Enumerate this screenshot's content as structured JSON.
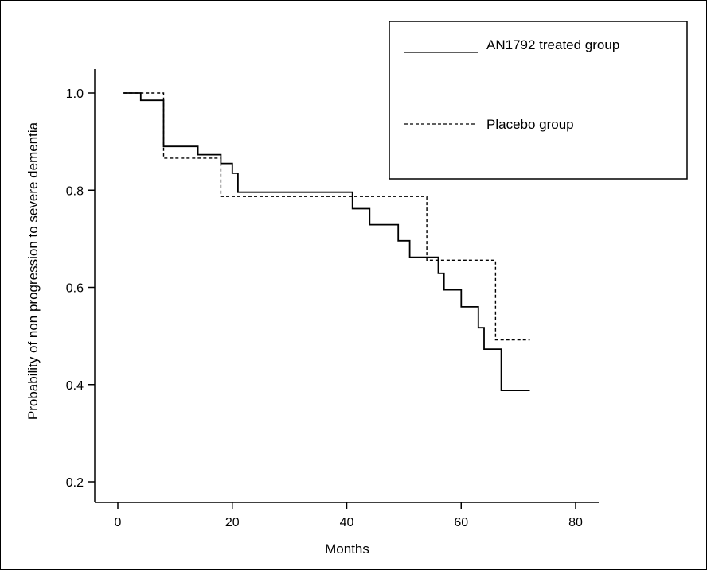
{
  "chart_data": {
    "type": "line",
    "subtype": "step",
    "xlabel": "Months",
    "ylabel": "Probability of non progression to severe dementia",
    "xlim": [
      -5,
      85
    ],
    "ylim": [
      0.15,
      1.06
    ],
    "xticks": [
      0,
      20,
      40,
      60,
      80
    ],
    "yticks": [
      0.2,
      0.4,
      0.6,
      0.8,
      1.0
    ],
    "xtick_labels": [
      "0",
      "20",
      "40",
      "60",
      "80"
    ],
    "ytick_labels": [
      "0.2",
      "0.4",
      "0.6",
      "0.8",
      "1.0"
    ],
    "grid": false,
    "legend_position": "top-right",
    "series": [
      {
        "name": "AN1792 treated group",
        "line_style": "solid",
        "color": "#000000",
        "points": [
          [
            1,
            1.0
          ],
          [
            4,
            1.0
          ],
          [
            4,
            0.985
          ],
          [
            8,
            0.985
          ],
          [
            8,
            0.89
          ],
          [
            14,
            0.89
          ],
          [
            14,
            0.873
          ],
          [
            18,
            0.873
          ],
          [
            18,
            0.855
          ],
          [
            20,
            0.855
          ],
          [
            20,
            0.835
          ],
          [
            21,
            0.835
          ],
          [
            21,
            0.796
          ],
          [
            41,
            0.796
          ],
          [
            41,
            0.762
          ],
          [
            44,
            0.762
          ],
          [
            44,
            0.729
          ],
          [
            49,
            0.729
          ],
          [
            49,
            0.696
          ],
          [
            51,
            0.696
          ],
          [
            51,
            0.662
          ],
          [
            56,
            0.662
          ],
          [
            56,
            0.629
          ],
          [
            57,
            0.629
          ],
          [
            57,
            0.595
          ],
          [
            60,
            0.595
          ],
          [
            60,
            0.56
          ],
          [
            63,
            0.56
          ],
          [
            63,
            0.517
          ],
          [
            64,
            0.517
          ],
          [
            64,
            0.473
          ],
          [
            67,
            0.473
          ],
          [
            67,
            0.388
          ],
          [
            72,
            0.388
          ]
        ]
      },
      {
        "name": "Placebo group",
        "line_style": "dashed",
        "color": "#000000",
        "points": [
          [
            1,
            1.0
          ],
          [
            8,
            1.0
          ],
          [
            8,
            0.866
          ],
          [
            18,
            0.866
          ],
          [
            18,
            0.787
          ],
          [
            54,
            0.787
          ],
          [
            54,
            0.656
          ],
          [
            66,
            0.656
          ],
          [
            66,
            0.492
          ],
          [
            72,
            0.492
          ]
        ]
      }
    ],
    "legend": [
      {
        "label": "AN1792 treated group",
        "line_style": "solid"
      },
      {
        "label": "Placebo group",
        "line_style": "dashed"
      }
    ]
  }
}
